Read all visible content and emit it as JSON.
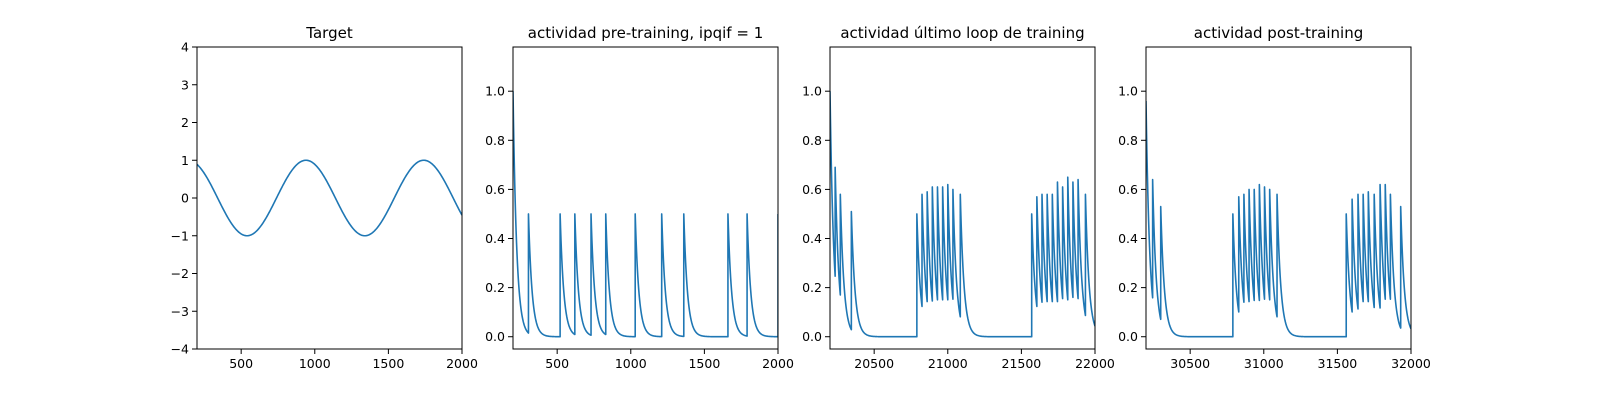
{
  "chart_data": [
    {
      "type": "line",
      "title": "Target",
      "xlim": [
        200,
        2000
      ],
      "ylim": [
        -4,
        4
      ],
      "xticks": [
        500,
        1000,
        1500,
        2000
      ],
      "yticks": [
        -4,
        -3,
        -2,
        -1,
        0,
        1,
        2,
        3,
        4
      ],
      "color": "#1f77b4",
      "series": [
        {
          "kind": "sine",
          "amplitude": 1,
          "period": 800,
          "peak_x": 940,
          "x_start": 200,
          "x_end": 2000,
          "values_sample": [
            [
              200,
              0.9
            ],
            [
              540,
              -0.97
            ],
            [
              940,
              1.0
            ],
            [
              1340,
              -0.97
            ],
            [
              1740,
              1.0
            ],
            [
              2000,
              -0.45
            ]
          ]
        }
      ]
    },
    {
      "type": "line",
      "title": "actividad pre-training, ipqif = 1",
      "xlim": [
        200,
        2000
      ],
      "ylim": [
        -0.05,
        1.18
      ],
      "xticks": [
        500,
        1000,
        1500,
        2000
      ],
      "yticks": [
        0.0,
        0.2,
        0.4,
        0.6,
        0.8,
        1.0
      ],
      "ytick_format": 1,
      "color": "#1f77b4",
      "series": [
        {
          "kind": "spikes",
          "tau": 25,
          "baseline": 0,
          "x_end": 2000,
          "initial_peak": 1.0,
          "spikes": [
            [
              200,
              1.0
            ],
            [
              305,
              0.5
            ],
            [
              520,
              0.5
            ],
            [
              620,
              0.5
            ],
            [
              730,
              0.5
            ],
            [
              830,
              0.5
            ],
            [
              1030,
              0.5
            ],
            [
              1210,
              0.5
            ],
            [
              1360,
              0.5
            ],
            [
              1660,
              0.5
            ],
            [
              1790,
              0.5
            ],
            [
              2000,
              0.5
            ]
          ]
        }
      ]
    },
    {
      "type": "line",
      "title": "actividad último loop de training",
      "xlim": [
        20200,
        22000
      ],
      "ylim": [
        -0.05,
        1.18
      ],
      "xticks": [
        20500,
        21000,
        21500,
        22000
      ],
      "yticks": [
        0.0,
        0.2,
        0.4,
        0.6,
        0.8,
        1.0
      ],
      "ytick_format": 1,
      "color": "#1f77b4",
      "series": [
        {
          "kind": "spikes",
          "tau": 25,
          "baseline": 0,
          "x_end": 22000,
          "initial_peak": 1.0,
          "spikes": [
            [
              20200,
              1.0
            ],
            [
              20235,
              0.69
            ],
            [
              20270,
              0.58
            ],
            [
              20345,
              0.51
            ],
            [
              20790,
              0.5
            ],
            [
              20825,
              0.58
            ],
            [
              20860,
              0.59
            ],
            [
              20895,
              0.61
            ],
            [
              20930,
              0.61
            ],
            [
              20965,
              0.61
            ],
            [
              21000,
              0.62
            ],
            [
              21035,
              0.6
            ],
            [
              21085,
              0.58
            ],
            [
              21570,
              0.5
            ],
            [
              21605,
              0.57
            ],
            [
              21640,
              0.58
            ],
            [
              21675,
              0.58
            ],
            [
              21710,
              0.58
            ],
            [
              21745,
              0.63
            ],
            [
              21780,
              0.61
            ],
            [
              21815,
              0.65
            ],
            [
              21850,
              0.63
            ],
            [
              21885,
              0.64
            ],
            [
              21935,
              0.58
            ]
          ]
        }
      ]
    },
    {
      "type": "line",
      "title": "actividad post-training",
      "xlim": [
        30200,
        32000
      ],
      "ylim": [
        -0.05,
        1.18
      ],
      "xticks": [
        30500,
        31000,
        31500,
        32000
      ],
      "yticks": [
        0.0,
        0.2,
        0.4,
        0.6,
        0.8,
        1.0
      ],
      "ytick_format": 1,
      "color": "#1f77b4",
      "series": [
        {
          "kind": "spikes",
          "tau": 25,
          "baseline": 0,
          "x_end": 32000,
          "initial_peak": 0.96,
          "spikes": [
            [
              30200,
              0.96
            ],
            [
              30245,
              0.64
            ],
            [
              30300,
              0.53
            ],
            [
              30790,
              0.5
            ],
            [
              30830,
              0.57
            ],
            [
              30865,
              0.58
            ],
            [
              30900,
              0.6
            ],
            [
              30935,
              0.6
            ],
            [
              30970,
              0.62
            ],
            [
              31005,
              0.61
            ],
            [
              31040,
              0.6
            ],
            [
              31090,
              0.58
            ],
            [
              31560,
              0.5
            ],
            [
              31600,
              0.56
            ],
            [
              31640,
              0.58
            ],
            [
              31675,
              0.58
            ],
            [
              31710,
              0.59
            ],
            [
              31750,
              0.58
            ],
            [
              31790,
              0.62
            ],
            [
              31825,
              0.62
            ],
            [
              31860,
              0.58
            ],
            [
              31930,
              0.53
            ]
          ]
        }
      ]
    }
  ]
}
